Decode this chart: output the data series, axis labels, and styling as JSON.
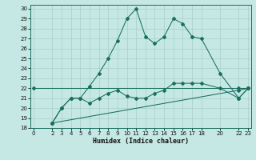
{
  "xlabel": "Humidex (Indice chaleur)",
  "background_color": "#c5e8e4",
  "grid_color": "#a8ccc8",
  "line_color": "#1a6e60",
  "spine_color": "#1a6e60",
  "xlim": [
    -0.3,
    23.3
  ],
  "ylim": [
    18,
    30.4
  ],
  "xticks": [
    0,
    2,
    3,
    4,
    5,
    6,
    7,
    8,
    9,
    10,
    11,
    12,
    13,
    14,
    15,
    16,
    17,
    18,
    20,
    22,
    23
  ],
  "yticks": [
    18,
    19,
    20,
    21,
    22,
    23,
    24,
    25,
    26,
    27,
    28,
    29,
    30
  ],
  "series1_x": [
    2,
    3,
    4,
    5,
    6,
    7,
    8,
    9,
    10,
    11,
    12,
    13,
    14,
    15,
    16,
    17,
    18,
    20,
    22,
    23
  ],
  "series1_y": [
    18.5,
    20.0,
    21.0,
    21.0,
    22.2,
    23.5,
    25.0,
    26.8,
    29.0,
    30.0,
    27.2,
    26.5,
    27.2,
    29.0,
    28.5,
    27.2,
    27.0,
    23.5,
    21.0,
    22.0
  ],
  "series2_x": [
    2,
    3,
    4,
    5,
    6,
    7,
    8,
    9,
    10,
    11,
    12,
    13,
    14,
    15,
    16,
    17,
    18,
    20,
    22,
    23
  ],
  "series2_y": [
    18.5,
    20.0,
    21.0,
    21.0,
    20.5,
    21.0,
    21.5,
    21.8,
    21.2,
    21.0,
    21.0,
    21.5,
    21.8,
    22.5,
    22.5,
    22.5,
    22.5,
    22.0,
    21.0,
    22.0
  ],
  "series3_x": [
    2,
    22,
    23
  ],
  "series3_y": [
    18.5,
    21.8,
    22.0
  ],
  "series4_x": [
    0,
    22,
    23
  ],
  "series4_y": [
    22.0,
    22.0,
    22.0
  ],
  "tick_fontsize": 5.0,
  "xlabel_fontsize": 6.0,
  "marker_size": 2.0,
  "linewidth": 0.75
}
